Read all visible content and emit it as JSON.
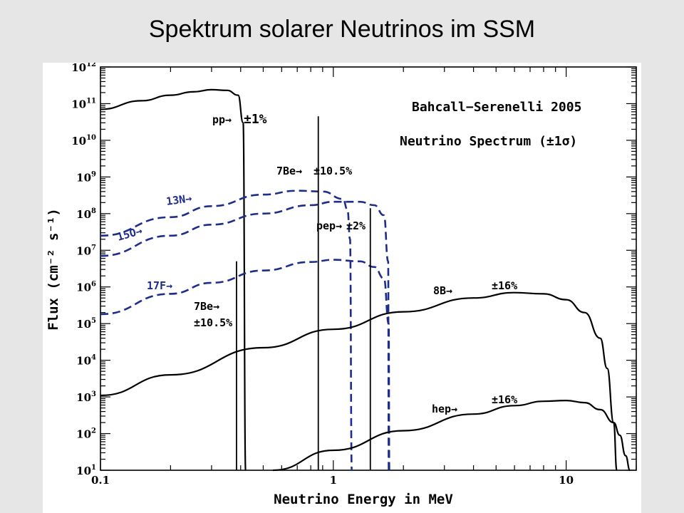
{
  "title": "Spektrum solarer Neutrinos im SSM",
  "chart_data": {
    "type": "line",
    "xlabel": "Neutrino Energy in MeV",
    "ylabel": "Flux (cm⁻² s⁻¹)",
    "x_scale": "log",
    "y_scale": "log",
    "xlim": [
      0.1,
      20
    ],
    "ylim": [
      10,
      1000000000000
    ],
    "x_tick_labels": [
      "0.1",
      "1",
      "10"
    ],
    "y_tick_labels": [
      {
        "base": "10",
        "exp": "1"
      },
      {
        "base": "10",
        "exp": "2"
      },
      {
        "base": "10",
        "exp": "3"
      },
      {
        "base": "10",
        "exp": "4"
      },
      {
        "base": "10",
        "exp": "5"
      },
      {
        "base": "10",
        "exp": "6"
      },
      {
        "base": "10",
        "exp": "7"
      },
      {
        "base": "10",
        "exp": "8"
      },
      {
        "base": "10",
        "exp": "9"
      },
      {
        "base": "10",
        "exp": "10"
      },
      {
        "base": "10",
        "exp": "11"
      },
      {
        "base": "10",
        "exp": "12"
      }
    ],
    "legend_title": "Bahcall−Serenelli 2005",
    "legend_subtitle": "Neutrino Spectrum (±1σ)",
    "colors": {
      "cno": "#1f2d8a",
      "main": "#000000"
    },
    "series": [
      {
        "name": "pp",
        "style": "solid",
        "color": "#000000",
        "x": [
          0.1,
          0.15,
          0.2,
          0.25,
          0.3,
          0.35,
          0.39,
          0.41,
          0.42
        ],
        "y": [
          70000000000,
          120000000000,
          170000000000,
          210000000000,
          240000000000,
          230000000000,
          170000000000,
          30000000000,
          10
        ]
      },
      {
        "name": "13N",
        "style": "dashed",
        "color": "#1f2d8a",
        "x": [
          0.1,
          0.2,
          0.3,
          0.5,
          0.7,
          0.9,
          1.1,
          1.15,
          1.18,
          1.2
        ],
        "y": [
          25000000,
          80000000,
          160000000,
          330000000,
          420000000,
          400000000,
          250000000,
          130000000,
          20000000,
          10
        ]
      },
      {
        "name": "15O",
        "style": "dashed",
        "color": "#1f2d8a",
        "x": [
          0.1,
          0.2,
          0.3,
          0.5,
          0.8,
          1.0,
          1.3,
          1.5,
          1.65,
          1.72,
          1.73
        ],
        "y": [
          7000000,
          25000000,
          50000000,
          100000000,
          170000000,
          210000000,
          210000000,
          170000000,
          90000000,
          5000000,
          10
        ]
      },
      {
        "name": "17F",
        "style": "dashed",
        "color": "#1f2d8a",
        "x": [
          0.1,
          0.2,
          0.3,
          0.5,
          0.8,
          1.0,
          1.3,
          1.5,
          1.65,
          1.73,
          1.74
        ],
        "y": [
          180000,
          650000,
          1300000,
          2800000,
          4800000,
          5500000,
          5000000,
          3500000,
          1700000,
          100000,
          10
        ]
      },
      {
        "name": "8B",
        "style": "solid",
        "color": "#000000",
        "x": [
          0.1,
          0.2,
          0.5,
          1,
          2,
          4,
          6,
          8,
          10,
          12,
          14,
          15,
          16,
          16.5
        ],
        "y": [
          1100,
          4000,
          22000,
          70000,
          210000,
          500000,
          700000,
          650000,
          450000,
          200000,
          40000,
          6000,
          200,
          10
        ]
      },
      {
        "name": "hep",
        "style": "solid",
        "color": "#000000",
        "x": [
          0.55,
          1,
          2,
          4,
          6,
          8,
          10,
          12,
          14,
          16,
          17,
          18,
          18.8
        ],
        "y": [
          10,
          35,
          120,
          340,
          580,
          760,
          800,
          700,
          450,
          200,
          90,
          25,
          10
        ]
      }
    ],
    "lines": [
      {
        "name": "7Be (0.38 MeV)",
        "x": 0.384,
        "y": 5000000
      },
      {
        "name": "7Be (0.86 MeV)",
        "x": 0.862,
        "y": 45000000000
      },
      {
        "name": "pep",
        "x": 1.442,
        "y": 140000000
      }
    ],
    "annotations": [
      {
        "label": "pp→",
        "uncertainty": "±1%"
      },
      {
        "label": "7Be→",
        "uncertainty": "±10.5%"
      },
      {
        "label": "13N→"
      },
      {
        "label": "15O→"
      },
      {
        "label": "17F→"
      },
      {
        "label": "pep→",
        "uncertainty": "±2%"
      },
      {
        "label": "7Be→",
        "uncertainty": "±10.5%"
      },
      {
        "label": "8B→",
        "uncertainty": "±16%"
      },
      {
        "label": "hep→",
        "uncertainty": "±16%"
      }
    ]
  }
}
